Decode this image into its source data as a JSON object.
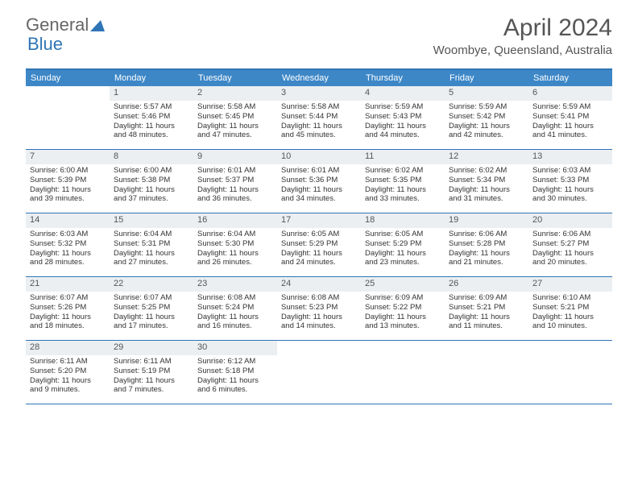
{
  "logo": {
    "text1": "General",
    "text2": "Blue"
  },
  "title": "April 2024",
  "location": "Woombye, Queensland, Australia",
  "colors": {
    "header_bg": "#3d87c7",
    "accent": "#2e75b6",
    "daynum_bg": "#eceff1",
    "text": "#333333",
    "muted": "#666666"
  },
  "day_names": [
    "Sunday",
    "Monday",
    "Tuesday",
    "Wednesday",
    "Thursday",
    "Friday",
    "Saturday"
  ],
  "weeks": [
    [
      {
        "n": "",
        "sr": "",
        "ss": "",
        "dl": ""
      },
      {
        "n": "1",
        "sr": "Sunrise: 5:57 AM",
        "ss": "Sunset: 5:46 PM",
        "dl": "Daylight: 11 hours and 48 minutes."
      },
      {
        "n": "2",
        "sr": "Sunrise: 5:58 AM",
        "ss": "Sunset: 5:45 PM",
        "dl": "Daylight: 11 hours and 47 minutes."
      },
      {
        "n": "3",
        "sr": "Sunrise: 5:58 AM",
        "ss": "Sunset: 5:44 PM",
        "dl": "Daylight: 11 hours and 45 minutes."
      },
      {
        "n": "4",
        "sr": "Sunrise: 5:59 AM",
        "ss": "Sunset: 5:43 PM",
        "dl": "Daylight: 11 hours and 44 minutes."
      },
      {
        "n": "5",
        "sr": "Sunrise: 5:59 AM",
        "ss": "Sunset: 5:42 PM",
        "dl": "Daylight: 11 hours and 42 minutes."
      },
      {
        "n": "6",
        "sr": "Sunrise: 5:59 AM",
        "ss": "Sunset: 5:41 PM",
        "dl": "Daylight: 11 hours and 41 minutes."
      }
    ],
    [
      {
        "n": "7",
        "sr": "Sunrise: 6:00 AM",
        "ss": "Sunset: 5:39 PM",
        "dl": "Daylight: 11 hours and 39 minutes."
      },
      {
        "n": "8",
        "sr": "Sunrise: 6:00 AM",
        "ss": "Sunset: 5:38 PM",
        "dl": "Daylight: 11 hours and 37 minutes."
      },
      {
        "n": "9",
        "sr": "Sunrise: 6:01 AM",
        "ss": "Sunset: 5:37 PM",
        "dl": "Daylight: 11 hours and 36 minutes."
      },
      {
        "n": "10",
        "sr": "Sunrise: 6:01 AM",
        "ss": "Sunset: 5:36 PM",
        "dl": "Daylight: 11 hours and 34 minutes."
      },
      {
        "n": "11",
        "sr": "Sunrise: 6:02 AM",
        "ss": "Sunset: 5:35 PM",
        "dl": "Daylight: 11 hours and 33 minutes."
      },
      {
        "n": "12",
        "sr": "Sunrise: 6:02 AM",
        "ss": "Sunset: 5:34 PM",
        "dl": "Daylight: 11 hours and 31 minutes."
      },
      {
        "n": "13",
        "sr": "Sunrise: 6:03 AM",
        "ss": "Sunset: 5:33 PM",
        "dl": "Daylight: 11 hours and 30 minutes."
      }
    ],
    [
      {
        "n": "14",
        "sr": "Sunrise: 6:03 AM",
        "ss": "Sunset: 5:32 PM",
        "dl": "Daylight: 11 hours and 28 minutes."
      },
      {
        "n": "15",
        "sr": "Sunrise: 6:04 AM",
        "ss": "Sunset: 5:31 PM",
        "dl": "Daylight: 11 hours and 27 minutes."
      },
      {
        "n": "16",
        "sr": "Sunrise: 6:04 AM",
        "ss": "Sunset: 5:30 PM",
        "dl": "Daylight: 11 hours and 26 minutes."
      },
      {
        "n": "17",
        "sr": "Sunrise: 6:05 AM",
        "ss": "Sunset: 5:29 PM",
        "dl": "Daylight: 11 hours and 24 minutes."
      },
      {
        "n": "18",
        "sr": "Sunrise: 6:05 AM",
        "ss": "Sunset: 5:29 PM",
        "dl": "Daylight: 11 hours and 23 minutes."
      },
      {
        "n": "19",
        "sr": "Sunrise: 6:06 AM",
        "ss": "Sunset: 5:28 PM",
        "dl": "Daylight: 11 hours and 21 minutes."
      },
      {
        "n": "20",
        "sr": "Sunrise: 6:06 AM",
        "ss": "Sunset: 5:27 PM",
        "dl": "Daylight: 11 hours and 20 minutes."
      }
    ],
    [
      {
        "n": "21",
        "sr": "Sunrise: 6:07 AM",
        "ss": "Sunset: 5:26 PM",
        "dl": "Daylight: 11 hours and 18 minutes."
      },
      {
        "n": "22",
        "sr": "Sunrise: 6:07 AM",
        "ss": "Sunset: 5:25 PM",
        "dl": "Daylight: 11 hours and 17 minutes."
      },
      {
        "n": "23",
        "sr": "Sunrise: 6:08 AM",
        "ss": "Sunset: 5:24 PM",
        "dl": "Daylight: 11 hours and 16 minutes."
      },
      {
        "n": "24",
        "sr": "Sunrise: 6:08 AM",
        "ss": "Sunset: 5:23 PM",
        "dl": "Daylight: 11 hours and 14 minutes."
      },
      {
        "n": "25",
        "sr": "Sunrise: 6:09 AM",
        "ss": "Sunset: 5:22 PM",
        "dl": "Daylight: 11 hours and 13 minutes."
      },
      {
        "n": "26",
        "sr": "Sunrise: 6:09 AM",
        "ss": "Sunset: 5:21 PM",
        "dl": "Daylight: 11 hours and 11 minutes."
      },
      {
        "n": "27",
        "sr": "Sunrise: 6:10 AM",
        "ss": "Sunset: 5:21 PM",
        "dl": "Daylight: 11 hours and 10 minutes."
      }
    ],
    [
      {
        "n": "28",
        "sr": "Sunrise: 6:11 AM",
        "ss": "Sunset: 5:20 PM",
        "dl": "Daylight: 11 hours and 9 minutes."
      },
      {
        "n": "29",
        "sr": "Sunrise: 6:11 AM",
        "ss": "Sunset: 5:19 PM",
        "dl": "Daylight: 11 hours and 7 minutes."
      },
      {
        "n": "30",
        "sr": "Sunrise: 6:12 AM",
        "ss": "Sunset: 5:18 PM",
        "dl": "Daylight: 11 hours and 6 minutes."
      },
      {
        "n": "",
        "sr": "",
        "ss": "",
        "dl": ""
      },
      {
        "n": "",
        "sr": "",
        "ss": "",
        "dl": ""
      },
      {
        "n": "",
        "sr": "",
        "ss": "",
        "dl": ""
      },
      {
        "n": "",
        "sr": "",
        "ss": "",
        "dl": ""
      }
    ]
  ]
}
